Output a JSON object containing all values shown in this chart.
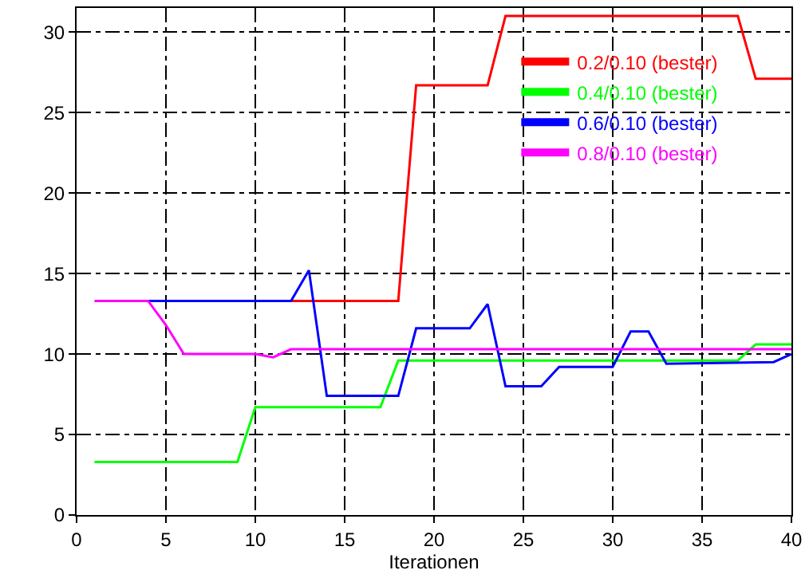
{
  "chart_data": {
    "type": "line",
    "xlabel": "Iterationen",
    "xlim": [
      0,
      40
    ],
    "ylim": [
      0,
      31.5
    ],
    "xticks": [
      0,
      5,
      10,
      15,
      20,
      25,
      30,
      35,
      40
    ],
    "yticks": [
      0,
      5,
      10,
      15,
      20,
      25,
      30
    ],
    "grid": true,
    "legend": "top right",
    "marker": "none",
    "line_style": "solid",
    "series": [
      {
        "name": "0.2/0.10 (bester)",
        "color": "#ff0000",
        "x": [
          12,
          18,
          19,
          23,
          24,
          37,
          38,
          40
        ],
        "values": [
          13.3,
          13.3,
          26.7,
          26.7,
          31.0,
          31.0,
          27.1,
          27.1
        ]
      },
      {
        "name": "0.4/0.10 (bester)",
        "color": "#00ff00",
        "x": [
          1,
          9,
          10,
          17,
          18,
          37,
          38,
          40
        ],
        "values": [
          3.3,
          3.3,
          6.7,
          6.7,
          9.6,
          9.6,
          10.6,
          10.6
        ]
      },
      {
        "name": "0.6/0.10 (bester)",
        "color": "#0000ff",
        "x": [
          4,
          12,
          13,
          14,
          18,
          19,
          22,
          23,
          24,
          26,
          27,
          30,
          31,
          32,
          33,
          39,
          40
        ],
        "values": [
          13.3,
          13.3,
          15.2,
          7.4,
          7.4,
          11.6,
          11.6,
          13.1,
          8.0,
          8.0,
          9.2,
          9.2,
          11.4,
          11.4,
          9.4,
          9.5,
          10.0
        ]
      },
      {
        "name": "0.8/0.10 (bester)",
        "color": "#ff00ff",
        "x": [
          1,
          4,
          5,
          6,
          10,
          11,
          12,
          40
        ],
        "values": [
          13.3,
          13.3,
          11.8,
          10.0,
          10.0,
          9.8,
          10.3,
          10.3
        ]
      }
    ]
  }
}
